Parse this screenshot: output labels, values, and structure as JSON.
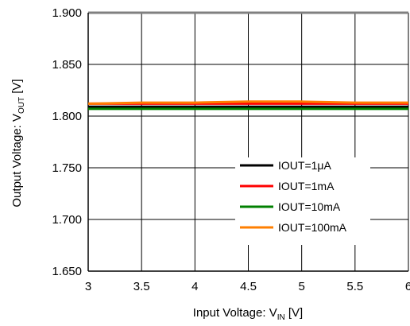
{
  "chart_data": {
    "type": "line",
    "xlabel": {
      "main": "Input Voltage: V",
      "sub": "IN",
      "unit": " [V]"
    },
    "ylabel": {
      "main": "Output Voltage: V",
      "sub": "OUT",
      "unit": " [V]"
    },
    "xlim": [
      3,
      6
    ],
    "ylim": [
      1.65,
      1.9
    ],
    "x_ticks": [
      "3",
      "3.5",
      "4",
      "4.5",
      "5",
      "5.5",
      "6"
    ],
    "y_ticks": [
      "1.900",
      "1.850",
      "1.800",
      "1.750",
      "1.700",
      "1.650"
    ],
    "grid": true,
    "legend_position": "bottom-right",
    "series": [
      {
        "name": "IOUT=1μA",
        "color": "#000000",
        "x": [
          3.0,
          3.5,
          4.0,
          4.5,
          5.0,
          5.5,
          6.0
        ],
        "y": [
          1.809,
          1.809,
          1.809,
          1.809,
          1.809,
          1.809,
          1.809
        ]
      },
      {
        "name": "IOUT=1mA",
        "color": "#ff0000",
        "x": [
          3.0,
          3.5,
          4.0,
          4.5,
          5.0,
          5.5,
          6.0
        ],
        "y": [
          1.812,
          1.812,
          1.812,
          1.812,
          1.812,
          1.812,
          1.812
        ]
      },
      {
        "name": "IOUT=10mA",
        "color": "#008000",
        "x": [
          3.0,
          3.5,
          4.0,
          4.5,
          5.0,
          5.5,
          6.0
        ],
        "y": [
          1.807,
          1.807,
          1.807,
          1.807,
          1.807,
          1.807,
          1.807
        ]
      },
      {
        "name": "IOUT=100mA",
        "color": "#ff7f00",
        "x": [
          3.0,
          3.5,
          4.0,
          4.5,
          5.0,
          5.5,
          6.0
        ],
        "y": [
          1.812,
          1.813,
          1.813,
          1.814,
          1.814,
          1.813,
          1.813
        ]
      }
    ]
  }
}
